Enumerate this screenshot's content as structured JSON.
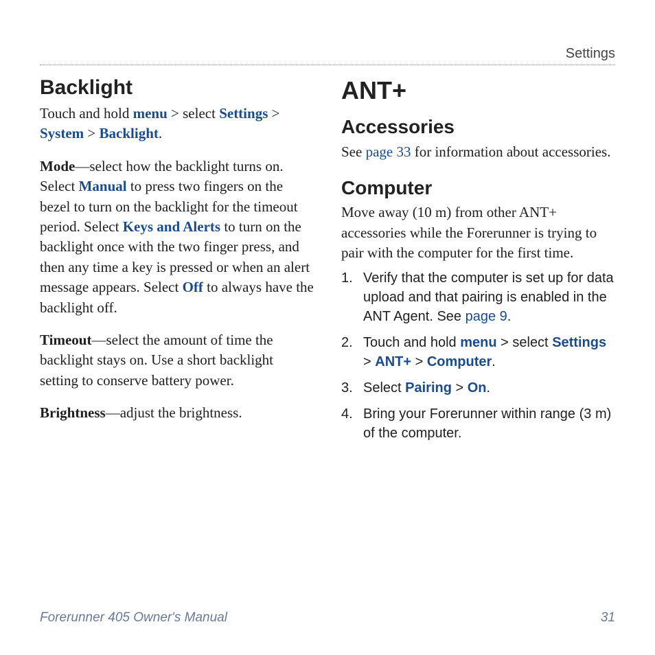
{
  "running_head": "Settings",
  "left": {
    "heading": "Backlight",
    "intro": {
      "pre": "Touch and hold ",
      "menu": "menu",
      "mid1": " > select ",
      "settings": "Settings",
      "gt1": " > ",
      "system": "System",
      "gt2": " > ",
      "backlight": "Backlight",
      "end": "."
    },
    "mode": {
      "label": "Mode",
      "t1": "—select how the backlight turns on. Select ",
      "manual": "Manual",
      "t2": " to press two fingers on the bezel to turn on the backlight for the timeout period. Select ",
      "keys": "Keys and Alerts",
      "t3": " to turn on the backlight once with the two finger press, and then any time a key is pressed or when an alert message appears. Select ",
      "off": "Off",
      "t4": " to always have the backlight off."
    },
    "timeout": {
      "label": "Timeout",
      "text": "—select the amount of time the backlight stays on. Use a short backlight setting to conserve battery power."
    },
    "brightness": {
      "label": "Brightness",
      "text": "—adjust the brightness."
    }
  },
  "right": {
    "heading": "ANT+",
    "accessories": {
      "heading": "Accessories",
      "pre": "See ",
      "link": "page 33",
      "post": " for information about accessories."
    },
    "computer": {
      "heading": "Computer",
      "intro": "Move away (10 m) from other ANT+ accessories while the Forerunner is trying to pair with the computer for the first time.",
      "step1": {
        "num": "1.",
        "t1": "Verify that the computer is set up for data upload and that pairing is enabled in the ANT Agent. See ",
        "link": "page 9",
        "t2": "."
      },
      "step2": {
        "num": "2.",
        "t1": "Touch and hold ",
        "menu": "menu",
        "t2": " > select ",
        "settings": "Settings",
        "gt1": " > ",
        "ant": "ANT+",
        "gt2": " > ",
        "computer": "Computer",
        "t3": "."
      },
      "step3": {
        "num": "3.",
        "t1": "Select ",
        "pairing": "Pairing",
        "gt": " > ",
        "on": "On",
        "t2": "."
      },
      "step4": {
        "num": "4.",
        "text": "Bring your Forerunner within range (3 m) of the computer."
      }
    }
  },
  "footer": {
    "title": "Forerunner 405 Owner's Manual",
    "page": "31"
  }
}
